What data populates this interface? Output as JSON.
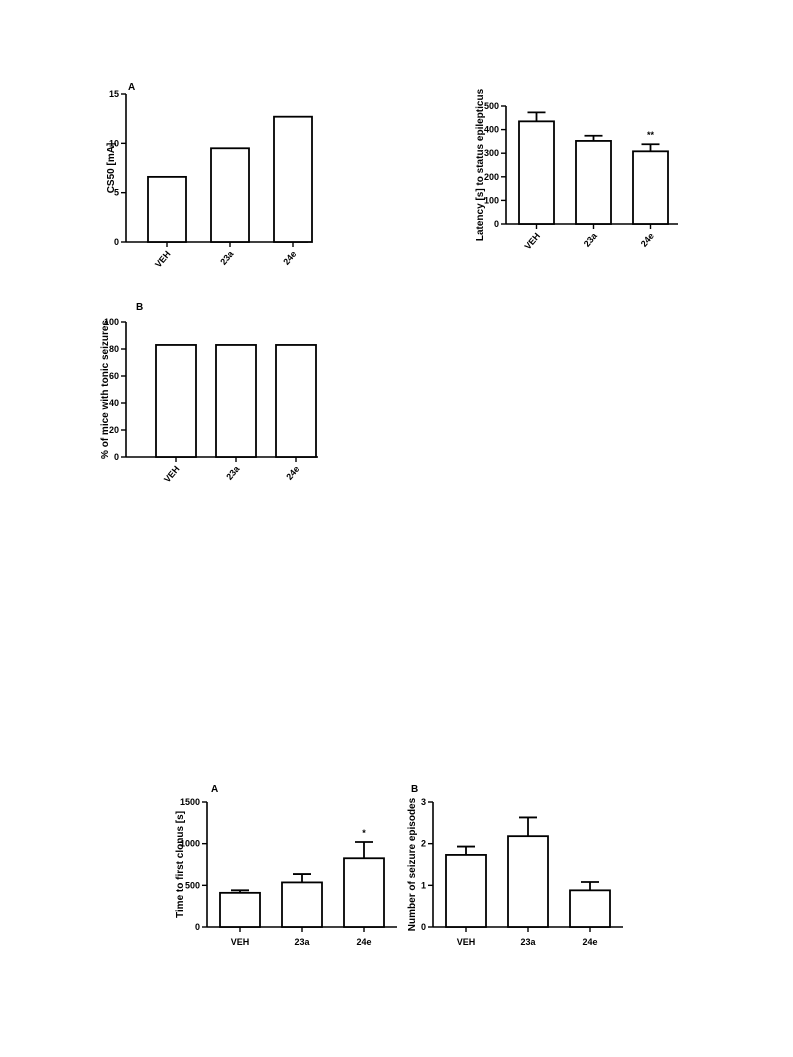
{
  "chart_data": [
    {
      "type": "bar",
      "panel_label": "A",
      "ylabel": "CS50 [mA]",
      "categories": [
        "VEH",
        "23a",
        "24e"
      ],
      "values": [
        6.6,
        9.5,
        12.7
      ],
      "ylim": [
        0,
        15
      ],
      "yticks": [
        0,
        5,
        10,
        15
      ],
      "x_tick_rotation": "angled"
    },
    {
      "type": "bar",
      "panel_label": "",
      "ylabel": "Latency [s] to status epilepticus",
      "categories": [
        "VEH",
        "23a",
        "24e"
      ],
      "values": [
        435,
        352,
        308
      ],
      "errors": [
        38,
        22,
        30
      ],
      "annotations": [
        "",
        "",
        "**"
      ],
      "ylim": [
        0,
        500
      ],
      "yticks": [
        0,
        100,
        200,
        300,
        400,
        500
      ],
      "x_tick_rotation": "angled"
    },
    {
      "type": "bar",
      "panel_label": "B",
      "ylabel": "% of mice with tonic seizures",
      "categories": [
        "VEH",
        "23a",
        "24e"
      ],
      "values": [
        83,
        83,
        83
      ],
      "ylim": [
        0,
        100
      ],
      "yticks": [
        0,
        20,
        40,
        60,
        80,
        100
      ],
      "x_tick_rotation": "angled"
    },
    {
      "type": "bar",
      "panel_label": "A",
      "ylabel": "Time to first clonus [s]",
      "categories": [
        "VEH",
        "23a",
        "24e"
      ],
      "values": [
        410,
        535,
        825
      ],
      "errors": [
        30,
        100,
        195
      ],
      "annotations": [
        "",
        "",
        "*"
      ],
      "ylim": [
        0,
        1500
      ],
      "yticks": [
        0,
        500,
        1000,
        1500
      ],
      "x_tick_rotation": "horizontal"
    },
    {
      "type": "bar",
      "panel_label": "B",
      "ylabel": "Number of seizure episodes",
      "categories": [
        "VEH",
        "23a",
        "24e"
      ],
      "values": [
        1.73,
        2.18,
        0.88
      ],
      "errors": [
        0.2,
        0.45,
        0.2
      ],
      "annotations": [
        "",
        "",
        ""
      ],
      "ylim": [
        0,
        3
      ],
      "yticks": [
        0,
        1,
        2,
        3
      ],
      "x_tick_rotation": "horizontal"
    }
  ]
}
